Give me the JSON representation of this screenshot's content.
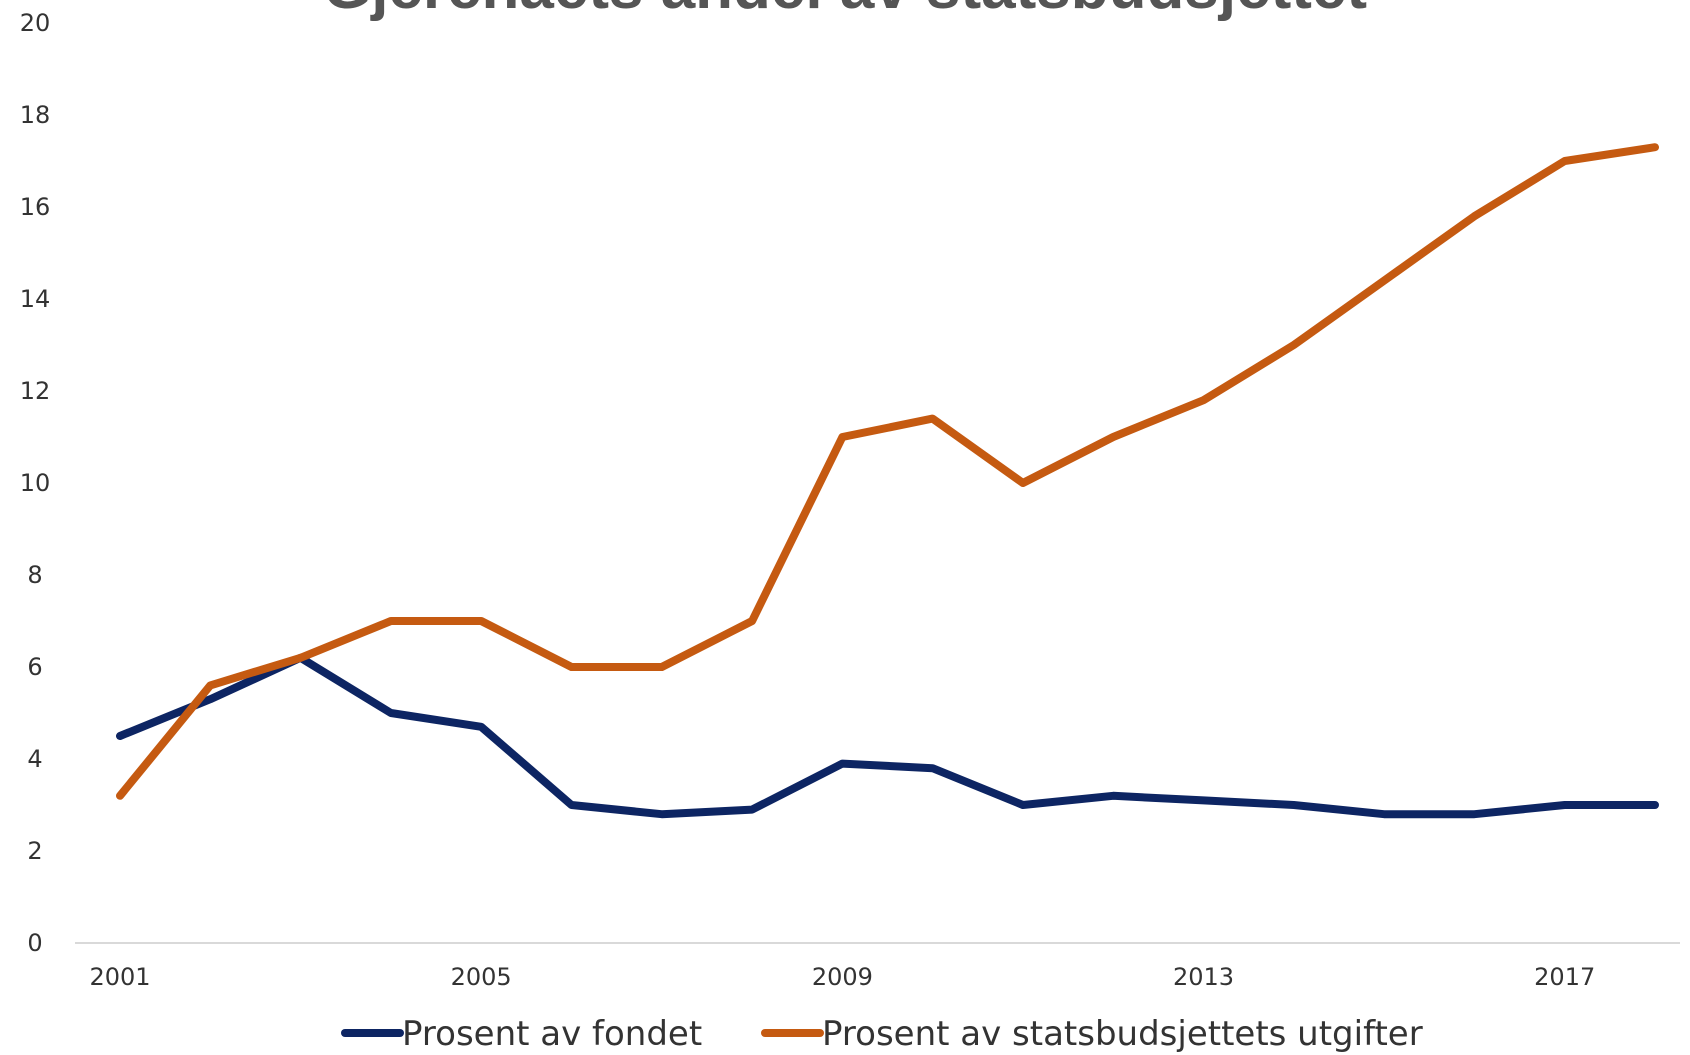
{
  "chart_data": {
    "type": "line",
    "title": "Gjerenaets andel av statsbudsjettet",
    "xlabel": "",
    "ylabel": "",
    "x": [
      2001,
      2002,
      2003,
      2004,
      2005,
      2006,
      2007,
      2008,
      2009,
      2010,
      2011,
      2012,
      2013,
      2014,
      2015,
      2016,
      2017,
      2018
    ],
    "x_ticks": [
      2001,
      2005,
      2009,
      2013,
      2017
    ],
    "ylim": [
      0,
      20
    ],
    "y_ticks": [
      0,
      2,
      4,
      6,
      8,
      10,
      12,
      14,
      16,
      18,
      20
    ],
    "grid": false,
    "legend_position": "bottom",
    "series": [
      {
        "name": "Prosent av fondet",
        "color": "#0d2563",
        "values": [
          4.5,
          5.3,
          6.2,
          5.0,
          4.7,
          3.0,
          2.8,
          2.9,
          3.9,
          3.8,
          3.0,
          3.2,
          3.1,
          3.0,
          2.8,
          2.8,
          3.0,
          3.0
        ]
      },
      {
        "name": "Prosent av statsbudsjettets utgifter",
        "color": "#c55a11",
        "values": [
          3.2,
          5.6,
          6.2,
          7.0,
          7.0,
          6.0,
          6.0,
          7.0,
          11.0,
          11.4,
          10.0,
          11.0,
          11.8,
          13.0,
          14.4,
          15.8,
          17.0,
          17.3
        ]
      }
    ]
  }
}
